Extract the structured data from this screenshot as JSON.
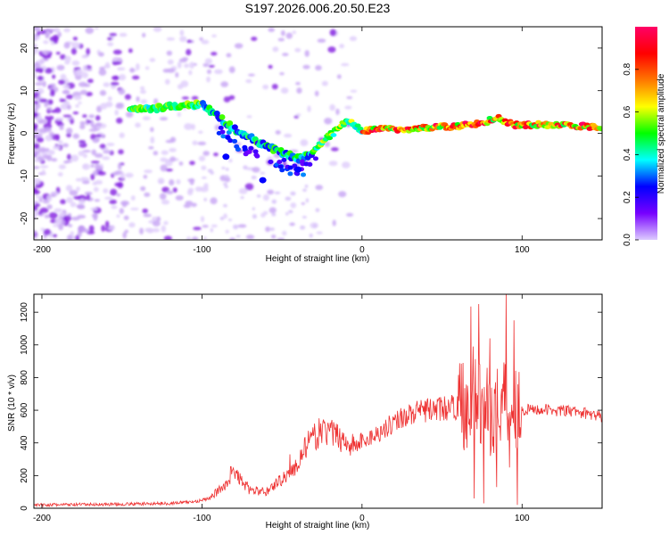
{
  "title": "S197.2026.006.20.50.E23",
  "chart_data": [
    {
      "type": "heatmap",
      "panel": "spectrogram",
      "xlabel": "Height of straight line (km)",
      "ylabel": "Frequency (Hz)",
      "xlim": [
        -205,
        150
      ],
      "ylim": [
        -25,
        25
      ],
      "xticks": [
        -200,
        -100,
        0,
        100
      ],
      "yticks": [
        -20,
        -10,
        0,
        10,
        20
      ],
      "ridge": [
        {
          "x": -145,
          "y": 5.5
        },
        {
          "x": -130,
          "y": 5.8
        },
        {
          "x": -115,
          "y": 6.5
        },
        {
          "x": -100,
          "y": 6.8
        },
        {
          "x": -90,
          "y": 4.0
        },
        {
          "x": -80,
          "y": 1.0
        },
        {
          "x": -70,
          "y": -1.0
        },
        {
          "x": -60,
          "y": -3.0
        },
        {
          "x": -50,
          "y": -4.5
        },
        {
          "x": -40,
          "y": -6.0
        },
        {
          "x": -32,
          "y": -5.0
        },
        {
          "x": -25,
          "y": -2.0
        },
        {
          "x": -15,
          "y": 1.0
        },
        {
          "x": -10,
          "y": 3.0
        },
        {
          "x": -5,
          "y": 2.0
        },
        {
          "x": 0,
          "y": 0.5
        },
        {
          "x": 10,
          "y": 1.0
        },
        {
          "x": 30,
          "y": 1.0
        },
        {
          "x": 50,
          "y": 1.5
        },
        {
          "x": 70,
          "y": 2.0
        },
        {
          "x": 85,
          "y": 3.5
        },
        {
          "x": 95,
          "y": 2.0
        },
        {
          "x": 120,
          "y": 2.0
        },
        {
          "x": 150,
          "y": 1.5
        }
      ],
      "colorbar": {
        "label": "Normalized spectral amplitude",
        "range": [
          0,
          1
        ],
        "ticks": [
          0.0,
          0.2,
          0.4,
          0.6,
          0.8
        ],
        "tick_labels": [
          "0.0",
          "0.2",
          "0.4",
          "0.6",
          "0.8"
        ],
        "stops": [
          "#ddccff",
          "#7700ff",
          "#0000ff",
          "#00ffff",
          "#00ff00",
          "#ffff00",
          "#ff7700",
          "#ff0000",
          "#ff0066"
        ]
      }
    },
    {
      "type": "line",
      "panel": "snr",
      "xlabel": "Height of straight line (km)",
      "ylabel": "SNR (10 * v/v)",
      "xlim": [
        -205,
        150
      ],
      "ylim": [
        0,
        1310
      ],
      "xticks": [
        -200,
        -100,
        0,
        100
      ],
      "yticks": [
        0,
        200,
        400,
        600,
        800,
        1000,
        1200
      ],
      "color": "#ee3333",
      "series": [
        {
          "name": "SNR",
          "x": [
            -205,
            -180,
            -150,
            -120,
            -105,
            -95,
            -85,
            -80,
            -70,
            -60,
            -50,
            -42,
            -35,
            -25,
            -15,
            -5,
            10,
            25,
            40,
            50,
            60,
            65,
            70,
            75,
            80,
            85,
            90,
            95,
            100,
            110,
            120,
            135,
            150
          ],
          "y": [
            20,
            22,
            25,
            30,
            40,
            60,
            150,
            220,
            110,
            100,
            180,
            240,
            380,
            480,
            440,
            380,
            460,
            560,
            600,
            610,
            620,
            640,
            700,
            620,
            580,
            620,
            700,
            640,
            600,
            605,
            600,
            590,
            560
          ],
          "spikes": [
            {
              "x": -82,
              "y": 255
            },
            {
              "x": -45,
              "y": 330
            },
            {
              "x": -23,
              "y": 500
            },
            {
              "x": 68,
              "y": 1235
            },
            {
              "x": 70,
              "y": 60
            },
            {
              "x": 73,
              "y": 1250
            },
            {
              "x": 76,
              "y": 30
            },
            {
              "x": 80,
              "y": 1040
            },
            {
              "x": 84,
              "y": 130
            },
            {
              "x": 90,
              "y": 1310
            },
            {
              "x": 92,
              "y": 250
            },
            {
              "x": 95,
              "y": 1150
            },
            {
              "x": 97,
              "y": 20
            }
          ]
        }
      ]
    }
  ]
}
